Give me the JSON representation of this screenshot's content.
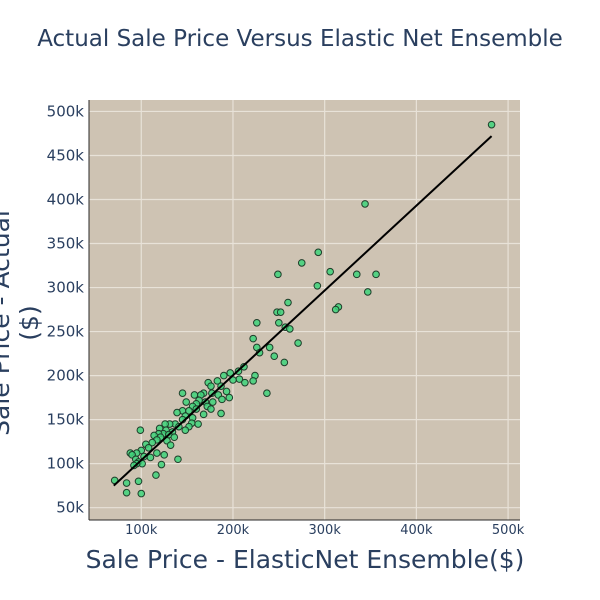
{
  "chart_data": {
    "type": "scatter",
    "title": "Actual Sale Price Versus Elastic Net Ensemble",
    "xlabel": "Sale Price - ElasticNet Ensemble($)",
    "ylabel": "Sale Price - Actual ($)",
    "xlim": [
      43000,
      513000
    ],
    "ylim": [
      36000,
      513000
    ],
    "xticks": [
      100000,
      200000,
      300000,
      400000,
      500000
    ],
    "xtick_labels": [
      "100k",
      "200k",
      "300k",
      "400k",
      "500k"
    ],
    "yticks": [
      50000,
      100000,
      150000,
      200000,
      250000,
      300000,
      350000,
      400000,
      450000,
      500000
    ],
    "ytick_labels": [
      "50k",
      "100k",
      "150k",
      "200k",
      "250k",
      "300k",
      "350k",
      "400k",
      "450k",
      "500k"
    ],
    "grid": true,
    "colors": {
      "plot_background": "#cec3b3",
      "grid": "#e8e2d8",
      "marker_fill": "#3ed37a",
      "marker_edge": "#1f3d2a",
      "fit_line": "#000000"
    },
    "fit_line": {
      "x": [
        70000,
        482000
      ],
      "y": [
        75000,
        472000
      ]
    },
    "points": [
      [
        482000,
        485000
      ],
      [
        344000,
        395000
      ],
      [
        293000,
        340000
      ],
      [
        275000,
        328000
      ],
      [
        249000,
        315000
      ],
      [
        306000,
        318000
      ],
      [
        335000,
        315000
      ],
      [
        356000,
        315000
      ],
      [
        292000,
        302000
      ],
      [
        347000,
        295000
      ],
      [
        315000,
        278000
      ],
      [
        312000,
        275000
      ],
      [
        260000,
        283000
      ],
      [
        248000,
        272000
      ],
      [
        252000,
        272000
      ],
      [
        226000,
        260000
      ],
      [
        250000,
        260000
      ],
      [
        257000,
        255000
      ],
      [
        262000,
        253000
      ],
      [
        222000,
        242000
      ],
      [
        271000,
        237000
      ],
      [
        226000,
        232000
      ],
      [
        240000,
        232000
      ],
      [
        245000,
        222000
      ],
      [
        229000,
        226000
      ],
      [
        256000,
        215000
      ],
      [
        212000,
        210000
      ],
      [
        206000,
        205000
      ],
      [
        224000,
        200000
      ],
      [
        197000,
        203000
      ],
      [
        190000,
        200000
      ],
      [
        207000,
        196000
      ],
      [
        213000,
        192000
      ],
      [
        222000,
        194000
      ],
      [
        200000,
        195000
      ],
      [
        173000,
        192000
      ],
      [
        183000,
        194000
      ],
      [
        176000,
        188000
      ],
      [
        187000,
        188000
      ],
      [
        193000,
        182000
      ],
      [
        168000,
        180000
      ],
      [
        177000,
        180000
      ],
      [
        184000,
        178000
      ],
      [
        196000,
        175000
      ],
      [
        158000,
        178000
      ],
      [
        145000,
        180000
      ],
      [
        165000,
        178000
      ],
      [
        237000,
        180000
      ],
      [
        163000,
        172000
      ],
      [
        170000,
        170000
      ],
      [
        178000,
        170000
      ],
      [
        188000,
        173000
      ],
      [
        160000,
        168000
      ],
      [
        149000,
        170000
      ],
      [
        172000,
        165000
      ],
      [
        176000,
        162000
      ],
      [
        156000,
        165000
      ],
      [
        187000,
        157000
      ],
      [
        168000,
        156000
      ],
      [
        145000,
        160000
      ],
      [
        152000,
        160000
      ],
      [
        160000,
        162000
      ],
      [
        139000,
        158000
      ],
      [
        148000,
        154000
      ],
      [
        156000,
        152000
      ],
      [
        162000,
        145000
      ],
      [
        145000,
        150000
      ],
      [
        155000,
        146000
      ],
      [
        137000,
        145000
      ],
      [
        131000,
        145000
      ],
      [
        126000,
        145000
      ],
      [
        152000,
        142000
      ],
      [
        141000,
        142000
      ],
      [
        120000,
        140000
      ],
      [
        127000,
        138000
      ],
      [
        148000,
        138000
      ],
      [
        134000,
        136000
      ],
      [
        124000,
        134000
      ],
      [
        119000,
        134000
      ],
      [
        130000,
        133000
      ],
      [
        114000,
        132000
      ],
      [
        121000,
        130000
      ],
      [
        136000,
        130000
      ],
      [
        117000,
        127000
      ],
      [
        128000,
        126000
      ],
      [
        112000,
        124000
      ],
      [
        105000,
        122000
      ],
      [
        132000,
        121000
      ],
      [
        100000,
        115000
      ],
      [
        108000,
        118000
      ],
      [
        95000,
        112000
      ],
      [
        117000,
        112000
      ],
      [
        125000,
        110000
      ],
      [
        88000,
        112000
      ],
      [
        90000,
        110000
      ],
      [
        94000,
        105000
      ],
      [
        103000,
        108000
      ],
      [
        110000,
        107000
      ],
      [
        97000,
        102000
      ],
      [
        101000,
        100000
      ],
      [
        95000,
        100000
      ],
      [
        92000,
        98000
      ],
      [
        122000,
        99000
      ],
      [
        140000,
        105000
      ],
      [
        99000,
        138000
      ],
      [
        116000,
        87000
      ],
      [
        71000,
        81000
      ],
      [
        84000,
        78000
      ],
      [
        97000,
        80000
      ],
      [
        84000,
        67000
      ],
      [
        100000,
        66000
      ]
    ]
  }
}
